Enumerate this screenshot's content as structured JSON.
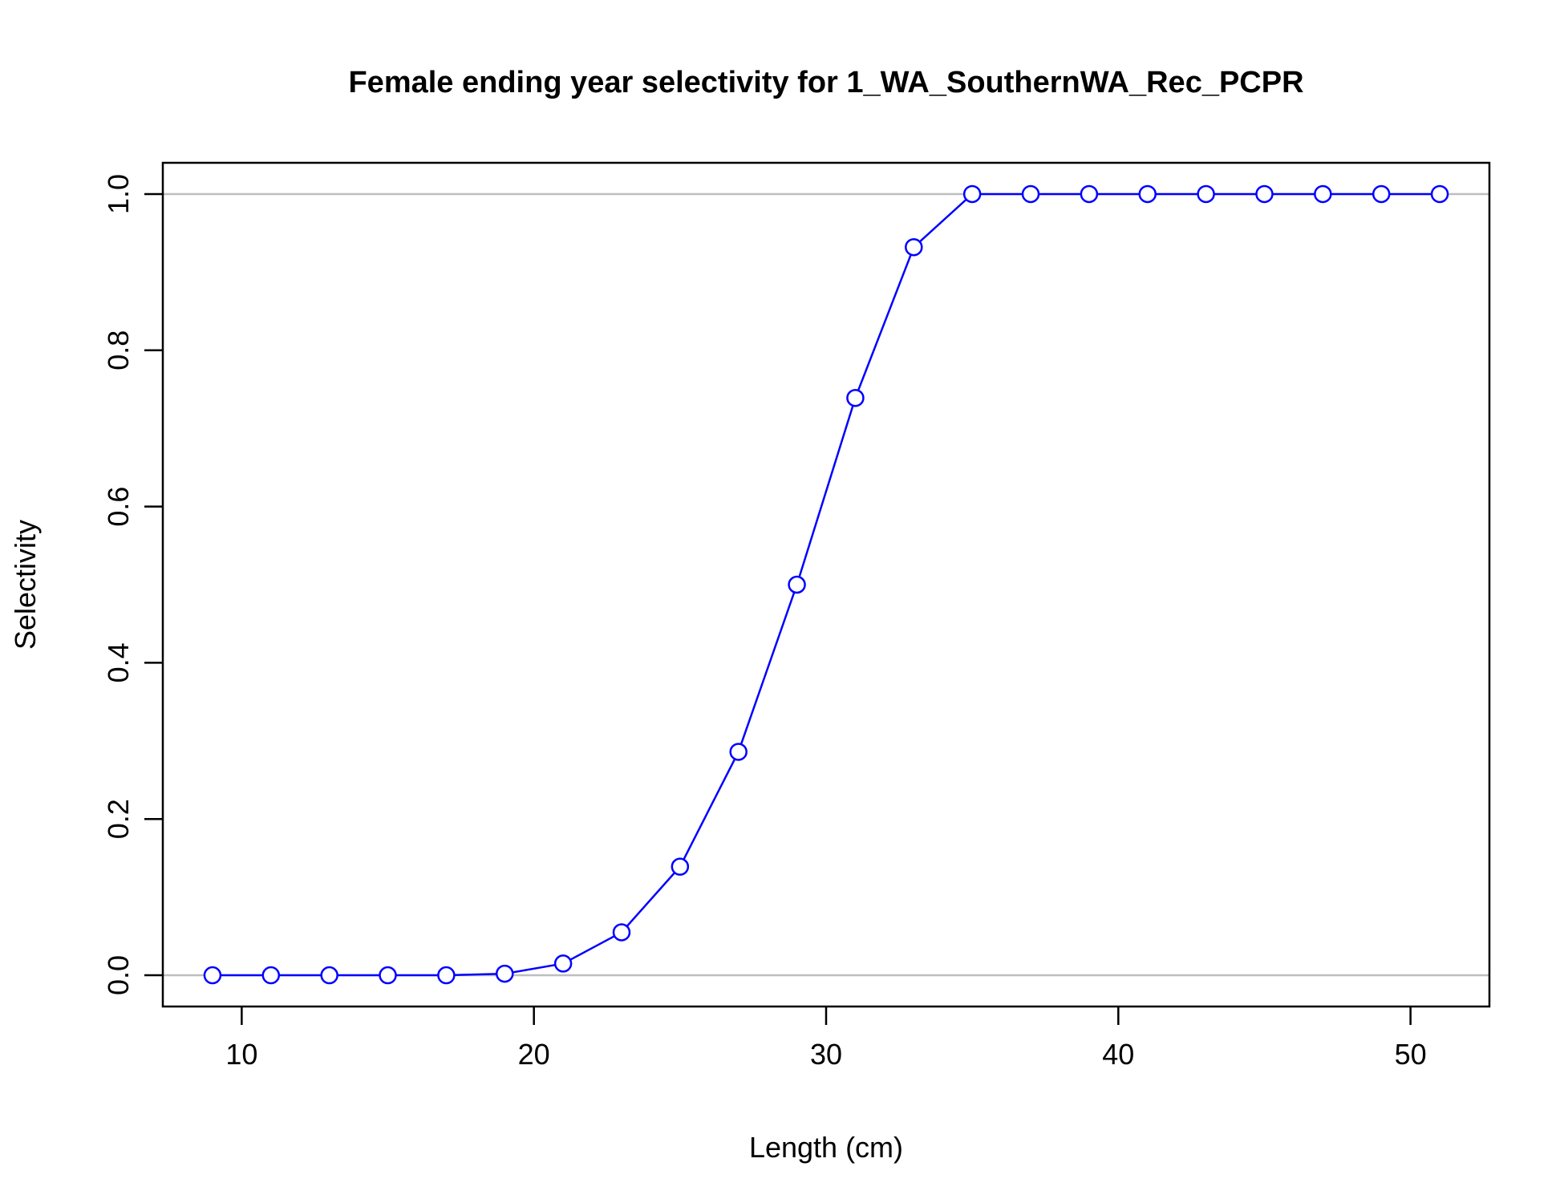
{
  "chart_data": {
    "type": "line",
    "title": "Female ending year selectivity for 1_WA_SouthernWA_Rec_PCPR",
    "xlabel": "Length (cm)",
    "ylabel": "Selectivity",
    "xlim": [
      7.3,
      52.7
    ],
    "ylim": [
      -0.04,
      1.04
    ],
    "x_ticks": [
      10,
      20,
      30,
      40,
      50
    ],
    "x_tick_labels": [
      "10",
      "20",
      "30",
      "40",
      "50"
    ],
    "y_ticks": [
      0,
      0.2,
      0.4,
      0.6,
      0.8,
      1.0
    ],
    "y_tick_labels": [
      "0.0",
      "0.2",
      "0.4",
      "0.6",
      "0.8",
      "1.0"
    ],
    "reference_lines": [
      0,
      1
    ],
    "grid": false,
    "legend": "none",
    "series": [
      {
        "color": "#0000ff",
        "marker": "open-circle",
        "x": [
          9,
          11,
          13,
          15,
          17,
          19,
          21,
          23,
          25,
          27,
          29,
          31,
          33,
          35,
          37,
          39,
          41,
          43,
          45,
          47,
          49,
          51
        ],
        "y": [
          0.0,
          0.0,
          0.0,
          0.0,
          0.0,
          0.002,
          0.015,
          0.055,
          0.139,
          0.286,
          0.5,
          0.739,
          0.932,
          1.0,
          1.0,
          1.0,
          1.0,
          1.0,
          1.0,
          1.0,
          1.0,
          1.0
        ]
      }
    ],
    "colors": {
      "series": "#0000ff",
      "reference": "#bebebe",
      "axis": "#000000"
    }
  }
}
